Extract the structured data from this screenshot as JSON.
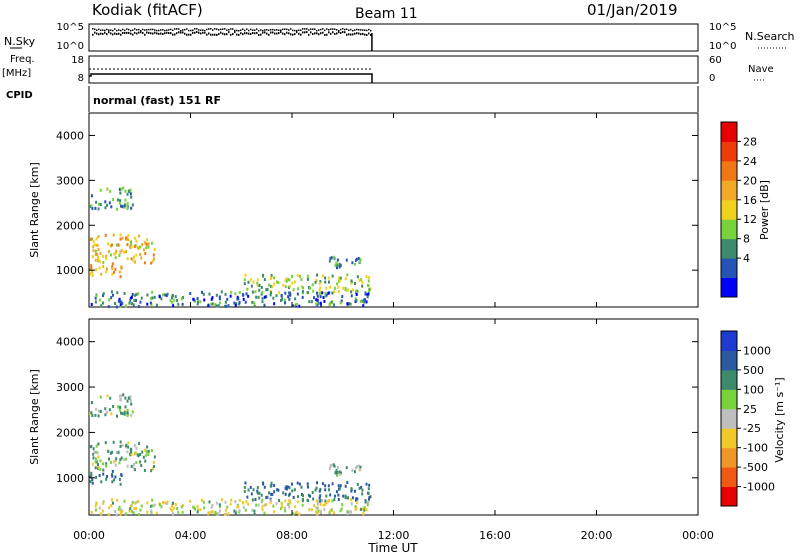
{
  "header": {
    "station": "Kodiak (fitACF)",
    "beam": "Beam 11",
    "date": "01/Jan/2019"
  },
  "left_labels": {
    "nsky": "N.Sky",
    "freq_line1": "Freq.",
    "freq_line2": "[MHz]",
    "cpid": "CPID"
  },
  "right_labels": {
    "nsearch": "N.Search",
    "nave": "Nave"
  },
  "cpid_text": "normal (fast) 151 RF",
  "noise_panel": {
    "left_ticks": [
      "10^5",
      "10^0"
    ],
    "right_ticks": [
      "10^5",
      "10^0"
    ]
  },
  "freq_panel": {
    "left_ticks": [
      "18",
      "8"
    ],
    "right_ticks": [
      "60",
      "0"
    ]
  },
  "x_axis": {
    "label": "Time UT",
    "ticks": [
      "00:00",
      "04:00",
      "08:00",
      "12:00",
      "16:00",
      "20:00",
      "00:00"
    ]
  },
  "power_panel": {
    "ylabel": "Slant Range [km]",
    "yticks": [
      "4000",
      "3000",
      "2000",
      "1000"
    ],
    "colorbar_label": "Power [dB]",
    "colorbar_ticks": [
      "28",
      "24",
      "20",
      "16",
      "12",
      "8",
      "4"
    ],
    "colors": [
      "#0000ff",
      "#2454b4",
      "#3c8a6a",
      "#78d23c",
      "#f0d21e",
      "#f0aa28",
      "#f07814",
      "#f03c0a",
      "#e60000"
    ]
  },
  "velocity_panel": {
    "ylabel": "Slant Range [km]",
    "yticks": [
      "4000",
      "3000",
      "2000",
      "1000"
    ],
    "colorbar_label": "Velocity [m s⁻¹]",
    "colorbar_ticks": [
      "1000",
      "500",
      "100",
      "25",
      "-25",
      "-100",
      "-500",
      "-1000"
    ],
    "colors": [
      "#1e3cd2",
      "#2a5aa0",
      "#3c8a6a",
      "#78d23c",
      "#bebebe",
      "#f0c828",
      "#f09628",
      "#f05a14",
      "#e60000"
    ]
  },
  "chart_data": {
    "type": "heatmap",
    "title": "Kodiak (fitACF) Beam 11 01/Jan/2019",
    "xlabel": "Time UT",
    "ylabel": "Slant Range [km]",
    "xlim_hours": [
      0,
      24
    ],
    "ylim_km": [
      180,
      4500
    ],
    "data_end_hour": 11.15,
    "scatter_regions": [
      {
        "t": [
          0.0,
          1.7
        ],
        "range_km": [
          2350,
          2850
        ],
        "power_db": 10,
        "velocity": 25
      },
      {
        "t": [
          0.0,
          2.6
        ],
        "range_km": [
          1150,
          1800
        ],
        "power_db": 20,
        "velocity": 25
      },
      {
        "t": [
          0.0,
          1.3
        ],
        "range_km": [
          850,
          1150
        ],
        "power_db": 22,
        "velocity": 100
      },
      {
        "t": [
          6.1,
          11.1
        ],
        "range_km": [
          480,
          900
        ],
        "power_db": 14,
        "velocity": 100
      },
      {
        "t": [
          9.4,
          10.9
        ],
        "range_km": [
          1050,
          1320
        ],
        "power_db": 10,
        "velocity": 25
      },
      {
        "t": [
          0.0,
          11.1
        ],
        "range_km": [
          180,
          520
        ],
        "power_db": 8,
        "velocity": -25
      }
    ]
  }
}
